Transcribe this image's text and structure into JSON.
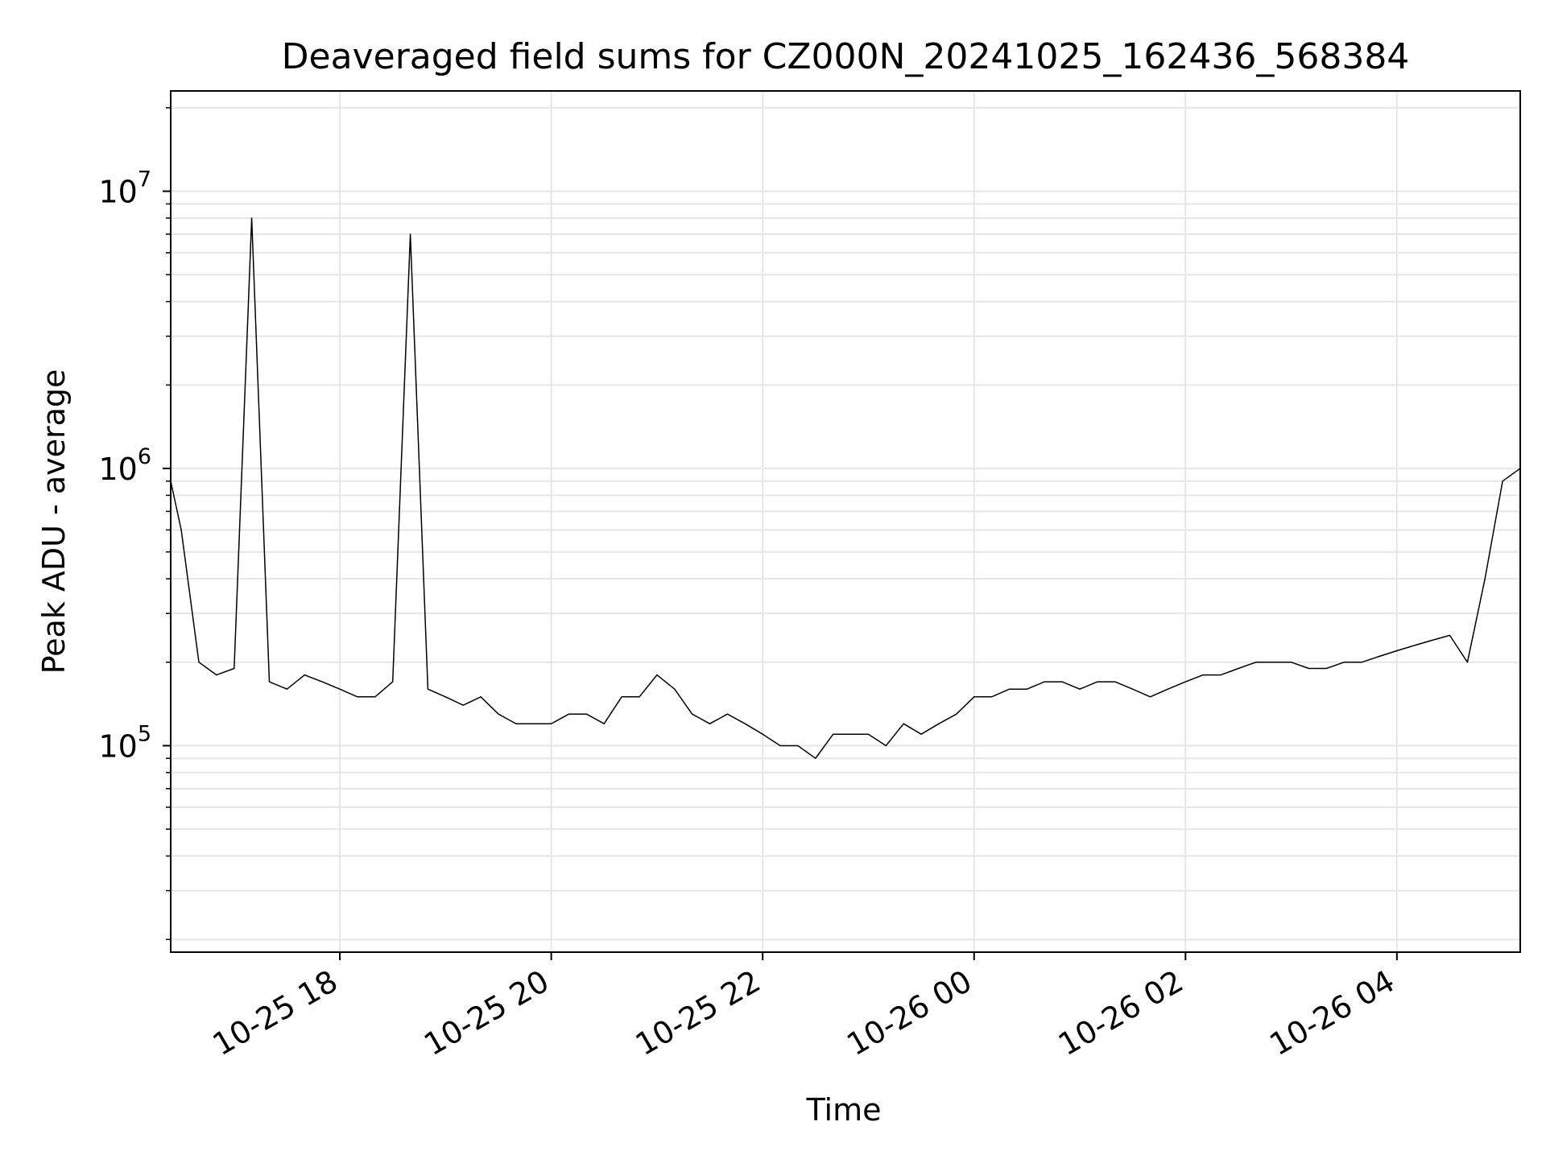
{
  "chart_data": {
    "type": "line",
    "title": "Deaveraged field sums for CZ000N_20241025_162436_568384",
    "xlabel": "Time",
    "ylabel": "Peak ADU - average",
    "yscale": "log",
    "ylim": [
      18000,
      23000000
    ],
    "xlim": [
      "2024-10-25 16:24",
      "2024-10-26 05:10"
    ],
    "grid": true,
    "legend": "none",
    "line_color": "#000000",
    "x_ticks": [
      {
        "value": "2024-10-25 18:00",
        "label": "10-25 18"
      },
      {
        "value": "2024-10-25 20:00",
        "label": "10-25 20"
      },
      {
        "value": "2024-10-25 22:00",
        "label": "10-25 22"
      },
      {
        "value": "2024-10-26 00:00",
        "label": "10-26 00"
      },
      {
        "value": "2024-10-26 02:00",
        "label": "10-26 02"
      },
      {
        "value": "2024-10-26 04:00",
        "label": "10-26 04"
      }
    ],
    "y_ticks": [
      {
        "value": 100000,
        "base": "10",
        "exp": "5"
      },
      {
        "value": 1000000,
        "base": "10",
        "exp": "6"
      },
      {
        "value": 10000000,
        "base": "10",
        "exp": "7"
      }
    ],
    "series": [
      {
        "x": [
          "2024-10-25 16:24",
          "2024-10-25 16:30",
          "2024-10-25 16:40",
          "2024-10-25 16:50",
          "2024-10-25 17:00",
          "2024-10-25 17:10",
          "2024-10-25 17:20",
          "2024-10-25 17:30",
          "2024-10-25 17:40",
          "2024-10-25 17:50",
          "2024-10-25 18:00",
          "2024-10-25 18:10",
          "2024-10-25 18:20",
          "2024-10-25 18:30",
          "2024-10-25 18:40",
          "2024-10-25 18:50",
          "2024-10-25 19:00",
          "2024-10-25 19:10",
          "2024-10-25 19:20",
          "2024-10-25 19:30",
          "2024-10-25 19:40",
          "2024-10-25 19:50",
          "2024-10-25 20:00",
          "2024-10-25 20:10",
          "2024-10-25 20:20",
          "2024-10-25 20:30",
          "2024-10-25 20:40",
          "2024-10-25 20:50",
          "2024-10-25 21:00",
          "2024-10-25 21:10",
          "2024-10-25 21:20",
          "2024-10-25 21:30",
          "2024-10-25 21:40",
          "2024-10-25 21:50",
          "2024-10-25 22:00",
          "2024-10-25 22:10",
          "2024-10-25 22:20",
          "2024-10-25 22:30",
          "2024-10-25 22:40",
          "2024-10-25 22:50",
          "2024-10-25 23:00",
          "2024-10-25 23:10",
          "2024-10-25 23:20",
          "2024-10-25 23:30",
          "2024-10-25 23:40",
          "2024-10-25 23:50",
          "2024-10-26 00:00",
          "2024-10-26 00:10",
          "2024-10-26 00:20",
          "2024-10-26 00:30",
          "2024-10-26 00:40",
          "2024-10-26 00:50",
          "2024-10-26 01:00",
          "2024-10-26 01:10",
          "2024-10-26 01:20",
          "2024-10-26 01:30",
          "2024-10-26 01:40",
          "2024-10-26 01:50",
          "2024-10-26 02:00",
          "2024-10-26 02:10",
          "2024-10-26 02:20",
          "2024-10-26 02:30",
          "2024-10-26 02:40",
          "2024-10-26 02:50",
          "2024-10-26 03:00",
          "2024-10-26 03:10",
          "2024-10-26 03:20",
          "2024-10-26 03:30",
          "2024-10-26 03:40",
          "2024-10-26 03:50",
          "2024-10-26 04:00",
          "2024-10-26 04:10",
          "2024-10-26 04:20",
          "2024-10-26 04:30",
          "2024-10-26 04:40",
          "2024-10-26 04:50",
          "2024-10-26 05:00",
          "2024-10-26 05:10"
        ],
        "y": [
          900000,
          600000,
          200000,
          180000,
          190000,
          8000000,
          170000,
          160000,
          180000,
          170000,
          160000,
          150000,
          150000,
          170000,
          7000000,
          160000,
          150000,
          140000,
          150000,
          130000,
          120000,
          120000,
          120000,
          130000,
          130000,
          120000,
          150000,
          150000,
          180000,
          160000,
          130000,
          120000,
          130000,
          120000,
          110000,
          100000,
          100000,
          90000,
          110000,
          110000,
          110000,
          100000,
          120000,
          110000,
          120000,
          130000,
          150000,
          150000,
          160000,
          160000,
          170000,
          170000,
          160000,
          170000,
          170000,
          160000,
          150000,
          160000,
          170000,
          180000,
          180000,
          190000,
          200000,
          200000,
          200000,
          190000,
          190000,
          200000,
          200000,
          210000,
          220000,
          230000,
          240000,
          250000,
          200000,
          400000,
          900000,
          1000000
        ]
      }
    ]
  }
}
